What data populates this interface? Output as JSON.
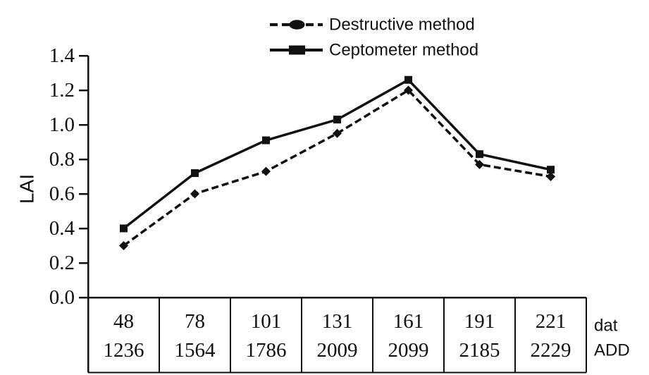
{
  "figure": {
    "description": "Line chart comparing LAI measured by destructive and ceptometer methods over the season"
  },
  "colors": {
    "ink": "#111111",
    "background": "#ffffff"
  },
  "chart_data": {
    "type": "line",
    "title": "",
    "ylabel": "LAI",
    "ylim": [
      0.0,
      1.4
    ],
    "ytick_step": 0.2,
    "yticks": [
      "1.4",
      "1.2",
      "1.0",
      "0.8",
      "0.6",
      "0.4",
      "0.2",
      "0.0"
    ],
    "grid": false,
    "legend_position": "top-center",
    "x_axis": {
      "row_labels": [
        "dat",
        "ADD"
      ],
      "dat": [
        "48",
        "78",
        "101",
        "131",
        "161",
        "191",
        "221"
      ],
      "add": [
        "1236",
        "1564",
        "1786",
        "2009",
        "2099",
        "2185",
        "2229"
      ]
    },
    "series": [
      {
        "name": "Destructive method",
        "line_style": "dashed",
        "marker": "diamond",
        "color": "#111111",
        "values": [
          0.3,
          0.6,
          0.73,
          0.95,
          1.2,
          0.77,
          0.7
        ]
      },
      {
        "name": "Ceptometer method",
        "line_style": "solid",
        "marker": "square",
        "color": "#111111",
        "values": [
          0.4,
          0.72,
          0.91,
          1.03,
          1.26,
          0.83,
          0.74
        ]
      }
    ]
  }
}
